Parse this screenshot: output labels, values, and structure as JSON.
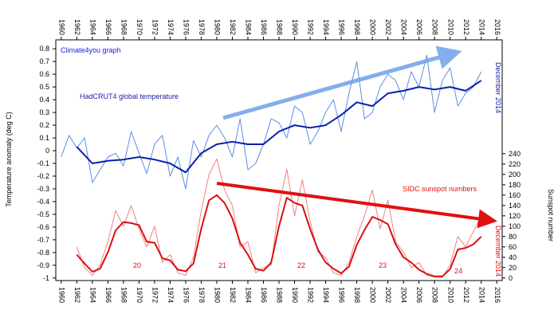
{
  "chart_data": {
    "type": "line",
    "y_label": "Temperature anomaly (deg C)",
    "y2_label": "Sunspot number",
    "annotations": [
      "Climate4you graph",
      "HadCRUT4 global temperature",
      "December 2014",
      "SIDC sunspot numbers",
      "December 2014"
    ],
    "cycle_labels": [
      20,
      21,
      22,
      23,
      24
    ],
    "xlim": [
      1959.3,
      2016.7
    ],
    "xticks": [
      1960,
      1962,
      1964,
      1966,
      1968,
      1970,
      1972,
      1974,
      1976,
      1978,
      1980,
      1982,
      1984,
      1986,
      1988,
      1990,
      1992,
      1994,
      1996,
      1998,
      2000,
      2002,
      2004,
      2006,
      2008,
      2010,
      2012,
      2014,
      2016
    ],
    "ylim": [
      -1.02,
      0.87
    ],
    "yticks": [
      0.8,
      0.7,
      0.6,
      0.5,
      0.4,
      0.3,
      0.2,
      0.1,
      0,
      -0.1,
      -0.2,
      -0.3,
      -0.4,
      -0.5,
      -0.6,
      -0.7,
      -0.8,
      -0.9,
      -1
    ],
    "y2lim": [
      -5,
      460
    ],
    "y2ticks": [
      0,
      20,
      40,
      60,
      80,
      100,
      120,
      140,
      160,
      180,
      200,
      220,
      240
    ],
    "grid": false,
    "series": [
      {
        "color": "#5b8ee6",
        "line_width": 1,
        "x": [
          1960,
          1961,
          1962,
          1963,
          1964,
          1965,
          1966,
          1967,
          1968,
          1969,
          1970,
          1971,
          1972,
          1973,
          1974,
          1975,
          1976,
          1977,
          1978,
          1979,
          1980,
          1981,
          1982,
          1983,
          1984,
          1985,
          1986,
          1987,
          1988,
          1989,
          1990,
          1991,
          1992,
          1993,
          1994,
          1995,
          1996,
          1997,
          1998,
          1999,
          2000,
          2001,
          2002,
          2003,
          2004,
          2005,
          2006,
          2007,
          2008,
          2009,
          2010,
          2011,
          2012,
          2013,
          2014
        ],
        "values": [
          -0.05,
          0.12,
          0.02,
          0.1,
          -0.25,
          -0.15,
          -0.05,
          -0.02,
          -0.12,
          0.15,
          -0.02,
          -0.18,
          0.05,
          0.12,
          -0.2,
          -0.05,
          -0.3,
          0.08,
          -0.05,
          0.12,
          0.2,
          0.1,
          -0.05,
          0.25,
          -0.15,
          -0.1,
          0.05,
          0.25,
          0.22,
          0.1,
          0.35,
          0.3,
          0.05,
          0.15,
          0.3,
          0.4,
          0.15,
          0.45,
          0.7,
          0.25,
          0.3,
          0.5,
          0.6,
          0.55,
          0.4,
          0.62,
          0.5,
          0.75,
          0.3,
          0.55,
          0.65,
          0.35,
          0.45,
          0.5,
          0.62
        ]
      },
      {
        "color": "#0a1fa8",
        "line_width": 2,
        "x": [
          1962,
          1964,
          1966,
          1968,
          1970,
          1972,
          1974,
          1976,
          1978,
          1980,
          1982,
          1984,
          1986,
          1988,
          1990,
          1992,
          1994,
          1996,
          1998,
          2000,
          2002,
          2004,
          2006,
          2008,
          2010,
          2012,
          2014
        ],
        "values": [
          0.03,
          -0.1,
          -0.08,
          -0.07,
          -0.05,
          -0.07,
          -0.1,
          -0.17,
          -0.02,
          0.05,
          0.07,
          0.05,
          0.05,
          0.15,
          0.2,
          0.18,
          0.2,
          0.28,
          0.38,
          0.35,
          0.45,
          0.47,
          0.5,
          0.48,
          0.5,
          0.47,
          0.55
        ]
      },
      {
        "color": "#f08080",
        "line_width": 1,
        "axis": "y2",
        "x": [
          1962,
          1963,
          1964,
          1965,
          1966,
          1967,
          1968,
          1969,
          1970,
          1971,
          1972,
          1973,
          1974,
          1975,
          1976,
          1977,
          1978,
          1979,
          1980,
          1981,
          1982,
          1983,
          1984,
          1985,
          1986,
          1987,
          1988,
          1989,
          1990,
          1991,
          1992,
          1993,
          1994,
          1995,
          1996,
          1997,
          1998,
          1999,
          2000,
          2001,
          2002,
          2003,
          2004,
          2005,
          2006,
          2007,
          2008,
          2009,
          2010,
          2011,
          2012,
          2013,
          2014
        ],
        "values": [
          60,
          20,
          5,
          25,
          70,
          130,
          100,
          140,
          95,
          60,
          100,
          30,
          45,
          10,
          5,
          40,
          130,
          200,
          230,
          170,
          140,
          60,
          70,
          10,
          20,
          25,
          140,
          210,
          120,
          190,
          110,
          50,
          40,
          10,
          5,
          30,
          80,
          120,
          170,
          95,
          150,
          70,
          50,
          20,
          30,
          5,
          2,
          1,
          25,
          80,
          60,
          90,
          120
        ]
      },
      {
        "color": "#d81010",
        "line_width": 2,
        "axis": "y2",
        "x": [
          1962,
          1963,
          1964,
          1965,
          1966,
          1967,
          1968,
          1969,
          1970,
          1971,
          1972,
          1973,
          1974,
          1975,
          1976,
          1977,
          1978,
          1979,
          1980,
          1981,
          1982,
          1983,
          1984,
          1985,
          1986,
          1987,
          1988,
          1989,
          1990,
          1991,
          1992,
          1993,
          1994,
          1995,
          1996,
          1997,
          1998,
          1999,
          2000,
          2001,
          2002,
          2003,
          2004,
          2005,
          2006,
          2007,
          2008,
          2009,
          2010,
          2011,
          2012,
          2013,
          2014
        ],
        "values": [
          45,
          28,
          12,
          18,
          50,
          92,
          108,
          106,
          102,
          70,
          68,
          38,
          34,
          16,
          13,
          28,
          95,
          150,
          160,
          145,
          115,
          68,
          45,
          18,
          14,
          30,
          100,
          155,
          145,
          140,
          95,
          55,
          30,
          18,
          9,
          22,
          64,
          93,
          118,
          112,
          104,
          65,
          40,
          30,
          16,
          8,
          3,
          3,
          17,
          55,
          58,
          65,
          80
        ]
      }
    ]
  }
}
